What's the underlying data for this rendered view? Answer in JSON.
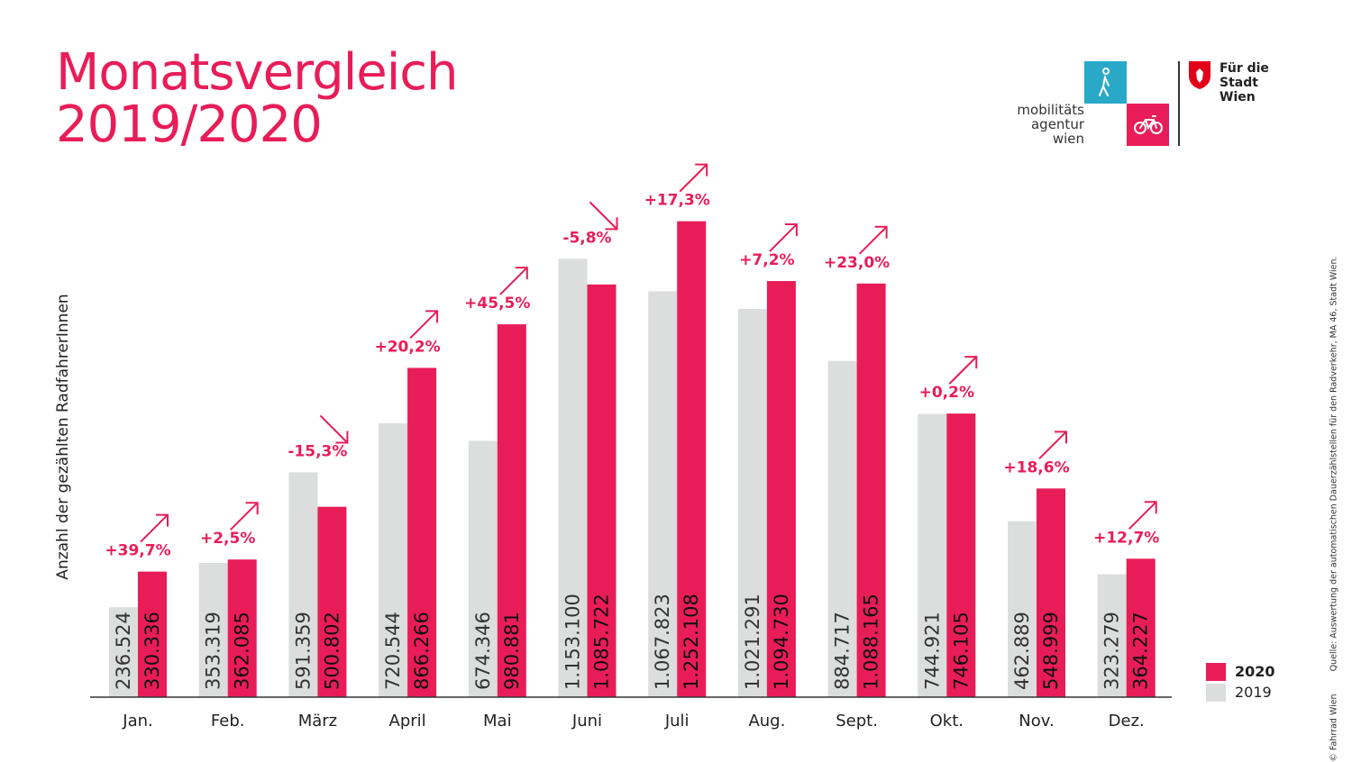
{
  "title": {
    "line1": "Monatsvergleich",
    "line2": "2019/2020"
  },
  "logo": {
    "agency_lines": [
      "mobilitäts",
      "agentur",
      "wien"
    ],
    "city_lines": [
      "Für die",
      "Stadt Wien"
    ],
    "icons": [
      "walking-person-icon",
      "bicycle-icon",
      "vienna-shield-icon"
    ]
  },
  "credit": {
    "copyright": "© Fahrrad Wien",
    "source": "Quelle: Auswertung der automatischen Dauerzählstellen für den Radverkehr, MA 46, Stadt Wien."
  },
  "chart_data": {
    "type": "bar",
    "title": "Monatsvergleich 2019/2020",
    "xlabel": "",
    "ylabel": "Anzahl der gezählten RadfahrerInnen",
    "ylim": [
      0,
      1400000
    ],
    "grid": false,
    "legend_position": "bottom-right",
    "categories": [
      "Jan.",
      "Feb.",
      "März",
      "April",
      "Mai",
      "Juni",
      "Juli",
      "Aug.",
      "Sept.",
      "Okt.",
      "Nov.",
      "Dez."
    ],
    "series": [
      {
        "name": "2019",
        "color": "#dcdddd",
        "values": [
          236524,
          353319,
          591359,
          720544,
          674346,
          1153100,
          1067823,
          1021291,
          884717,
          744921,
          462889,
          323279
        ],
        "labels": [
          "236.524",
          "353.319",
          "591.359",
          "720.544",
          "674.346",
          "1.153.100",
          "1.067.823",
          "1.021.291",
          "884.717",
          "744.921",
          "462.889",
          "323.279"
        ]
      },
      {
        "name": "2020",
        "color": "#e81d58",
        "values": [
          330336,
          362085,
          500802,
          866266,
          980881,
          1085722,
          1252108,
          1094730,
          1088165,
          746105,
          548999,
          364227
        ],
        "labels": [
          "330.336",
          "362.085",
          "500.802",
          "866.266",
          "980.881",
          "1.085.722",
          "1.252.108",
          "1.094.730",
          "1.088.165",
          "746.105",
          "548.999",
          "364.227"
        ]
      }
    ],
    "changes": [
      {
        "label": "+39,7%",
        "direction": "up"
      },
      {
        "label": "+2,5%",
        "direction": "up"
      },
      {
        "label": "-15,3%",
        "direction": "down"
      },
      {
        "label": "+20,2%",
        "direction": "up"
      },
      {
        "label": "+45,5%",
        "direction": "up"
      },
      {
        "label": "-5,8%",
        "direction": "down"
      },
      {
        "label": "+17,3%",
        "direction": "up"
      },
      {
        "label": "+7,2%",
        "direction": "up"
      },
      {
        "label": "+23,0%",
        "direction": "up"
      },
      {
        "label": "+0,2%",
        "direction": "up"
      },
      {
        "label": "+18,6%",
        "direction": "up"
      },
      {
        "label": "+12,7%",
        "direction": "up"
      }
    ]
  }
}
